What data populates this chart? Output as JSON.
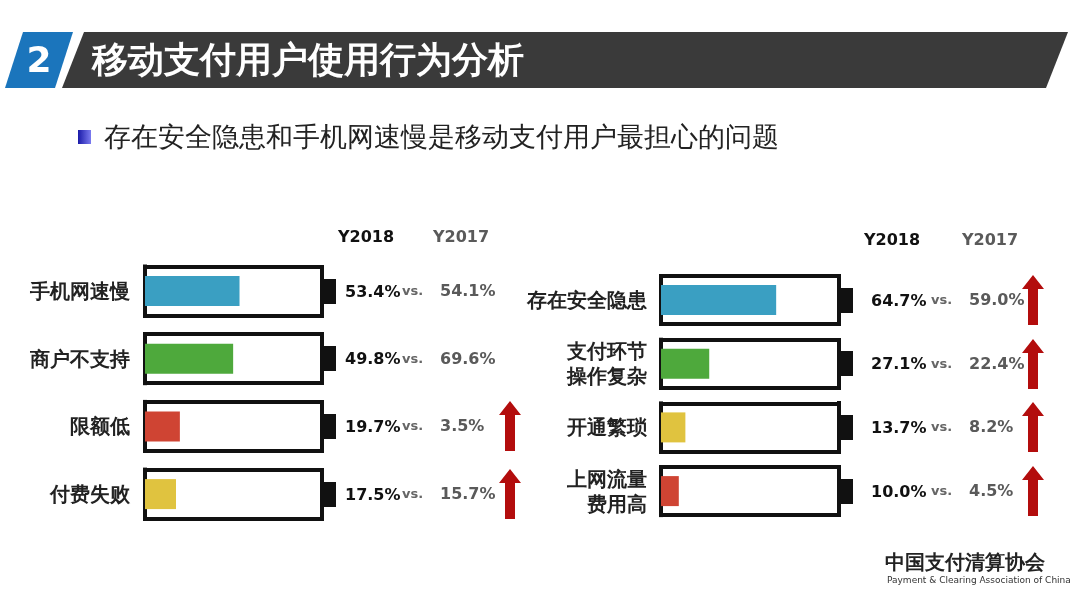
{
  "chart_data": [
    {
      "type": "bar",
      "orientation": "horizontal",
      "title": "移动支付用户使用行为分析",
      "subtitle": "存在安全隐患和手机网速慢是移动支付用户最担心的问题",
      "annotations": [
        "vs.",
        "2"
      ],
      "categories": [
        "手机网速慢",
        "商户不支持",
        "限额低",
        "付费失败"
      ],
      "xlim": [
        0,
        100
      ],
      "tick_labels": "y",
      "series": [
        {
          "name": "Y2018",
          "colors": [
            "#3a9fc2",
            "#4ea93c",
            "#cf4433",
            "#e0c33f"
          ],
          "values": [
            53.4,
            49.8,
            19.7,
            17.5
          ],
          "value_labels": [
            "53.4%",
            "49.8%",
            "19.7%",
            "17.5%"
          ]
        }
      ]
    },
    {
      "type": "other",
      "series": [
        {
          "name": "Y2017",
          "color": "#5a5a5a",
          "values": [
            54.1,
            69.6,
            3.5,
            15.7
          ],
          "value_labels": [
            "54.1%",
            "69.6%",
            "3.5%",
            "15.7%"
          ]
        }
      ]
    },
    {
      "type": "bar",
      "orientation": "horizontal",
      "annotations": [
        "vs.",
        "中国支付清算协会",
        "Payment & Clearing Association of China"
      ],
      "categories": [
        "存在安全隐患",
        "支付环节操作复杂",
        "开通繁琐",
        "上网流量费用高"
      ],
      "xlim": [
        0,
        100
      ],
      "tick_labels": "y",
      "series": [
        {
          "name": "Y2018",
          "colors": [
            "#3a9fc2",
            "#4ea93c",
            "#e0c33f",
            "#cf4433"
          ],
          "values": [
            64.7,
            27.1,
            13.7,
            10.0
          ],
          "value_labels": [
            "64.7%",
            "27.1%",
            "13.7%",
            "10.0%"
          ]
        }
      ]
    },
    {
      "type": "other",
      "series": [
        {
          "name": "Y2017",
          "color": "#5a5a5a",
          "values": [
            59.0,
            22.4,
            8.2,
            4.5
          ],
          "value_labels": [
            "59.0%",
            "22.4%",
            "8.2%",
            "4.5%"
          ]
        }
      ]
    }
  ]
}
